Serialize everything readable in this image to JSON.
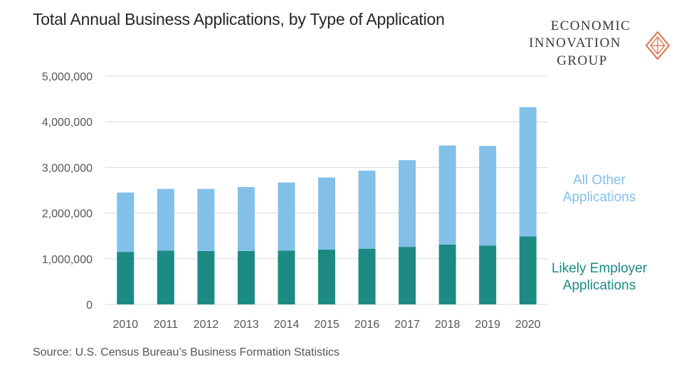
{
  "chart_data": {
    "type": "bar",
    "stacked": true,
    "title": "Total Annual Business Applications, by Type of Application",
    "categories": [
      "2010",
      "2011",
      "2012",
      "2013",
      "2014",
      "2015",
      "2016",
      "2017",
      "2018",
      "2019",
      "2020"
    ],
    "series": [
      {
        "name": "Likely Employer Applications",
        "name_lines": [
          "Likely Employer",
          "Applications"
        ],
        "color": "#1c8a83",
        "values": [
          1150000,
          1180000,
          1170000,
          1170000,
          1180000,
          1200000,
          1220000,
          1260000,
          1310000,
          1290000,
          1490000
        ]
      },
      {
        "name": "All Other Applications",
        "name_lines": [
          "All Other",
          "Applications"
        ],
        "color": "#82c0ea",
        "values": [
          1300000,
          1350000,
          1360000,
          1400000,
          1490000,
          1580000,
          1710000,
          1900000,
          2170000,
          2180000,
          2830000
        ]
      }
    ],
    "ylim": [
      0,
      5000000
    ],
    "yticks": [
      0,
      1000000,
      2000000,
      3000000,
      4000000,
      5000000
    ],
    "ytick_labels": [
      "0",
      "1,000,000",
      "2,000,000",
      "3,000,000",
      "4,000,000",
      "5,000,000"
    ],
    "grid": true,
    "legend_placement": "right"
  },
  "source": "Source: U.S. Census Bureau’s Business Formation Statistics",
  "logo": {
    "lines": [
      "ECONOMIC",
      "INNOVATION",
      "GROUP"
    ],
    "color": "#d9805a"
  },
  "colors": {
    "grid": "#d9d9d9",
    "axis_text": "#555555"
  }
}
